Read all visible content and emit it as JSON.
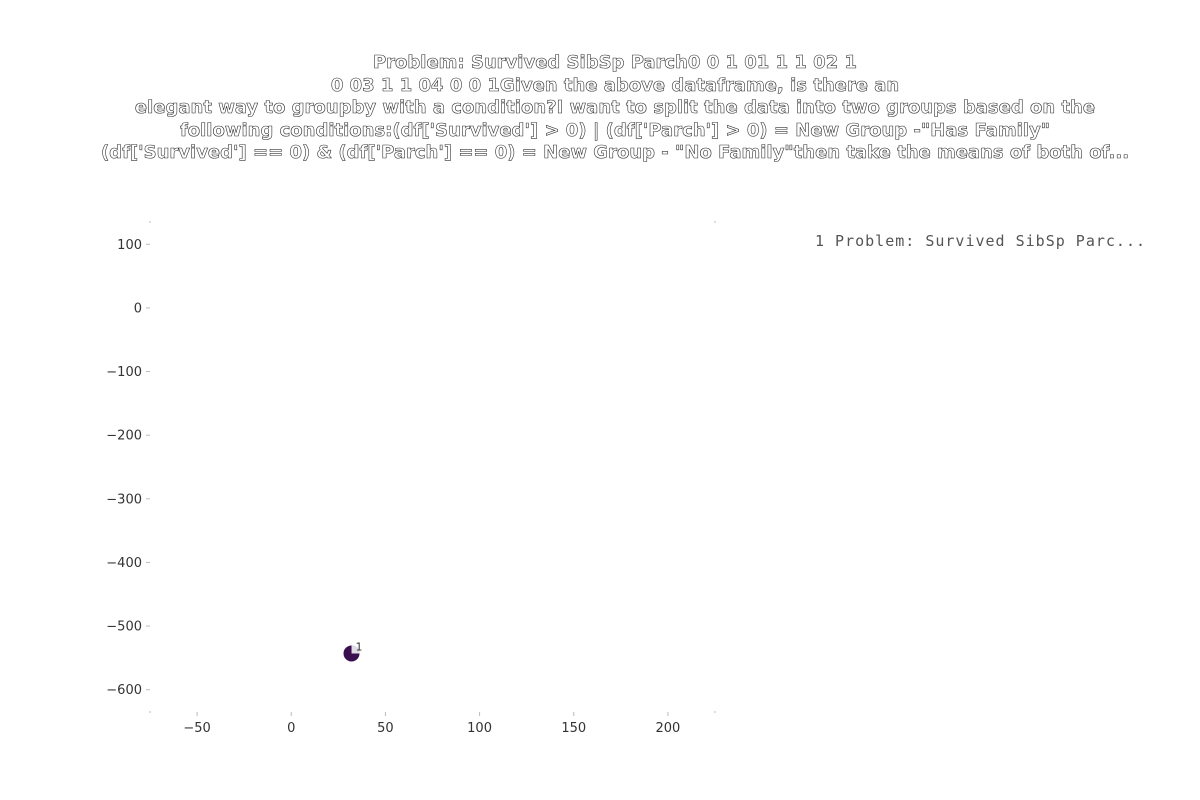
{
  "chart_data": {
    "type": "scatter",
    "title": "Problem:   Survived  SibSp  Parch0          0       1       01          1       1       02          1       \n0       03          1       1       04          0       0       1Given the above dataframe, is there an \nelegant way to groupby with a condition?I want to split the data into two groups based on the \nfollowing conditions:(df['Survived'] > 0) | (df['Parch'] > 0) =   New Group -\"Has Family\"\n(df['Survived'] == 0) & (df['Parch'] == 0) = New Group - \"No Family\"then take the means of both of...",
    "xlabel": "",
    "ylabel": "",
    "xlim": [
      -75,
      225
    ],
    "ylim": [
      -635,
      135
    ],
    "x_ticks": [
      -50,
      0,
      50,
      100,
      150,
      200
    ],
    "x_tick_labels": [
      "−50",
      "0",
      "50",
      "100",
      "150",
      "200"
    ],
    "y_ticks": [
      100,
      0,
      -100,
      -200,
      -300,
      -400,
      -500,
      -600
    ],
    "y_tick_labels": [
      "100",
      "0",
      "−100",
      "−200",
      "−300",
      "−400",
      "−500",
      "−600"
    ],
    "grid": false,
    "legend_position": "top-right",
    "series": [
      {
        "name": "1  Problem:   Survived  SibSp  Parc...",
        "color": "#3b0f4f",
        "points": [
          {
            "x": 32,
            "y": -543,
            "label": "1"
          }
        ]
      }
    ]
  }
}
